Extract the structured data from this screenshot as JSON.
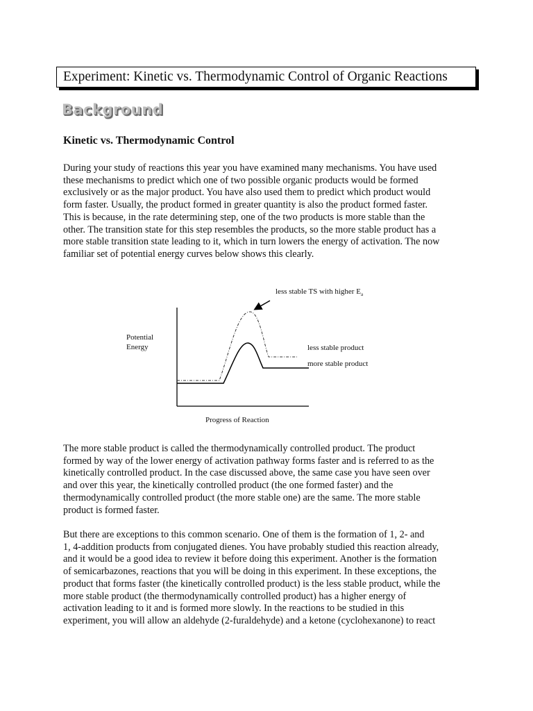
{
  "title": "Experiment:  Kinetic vs. Thermodynamic Control of Organic Reactions",
  "section_banner": "Background",
  "heading": "Kinetic vs. Thermodynamic Control",
  "paragraphs": [
    [
      "During your study of reactions this year you have examined many mechanisms.  You have used",
      "these mechanisms to predict which one of two possible organic products would be formed",
      "exclusively or as the major product.  You have also used them to predict which product would",
      "form faster.  Usually, the product formed in greater quantity is also the product formed faster.",
      "This is because, in the rate determining step, one of the two products is more stable than the",
      "other.  The transition state for this step resembles the products, so the more stable product has a",
      "more stable transition state leading to it, which in turn lowers the energy of activation.  The now",
      "familiar set of potential energy curves below shows this clearly."
    ],
    [
      "The more stable product is called the thermodynamically controlled product.  The product",
      "formed by way of the lower energy of activation pathway forms faster and is referred to as the",
      "kinetically controlled product.  In the case discussed above, the same case you have seen over",
      "and over this year, the kinetically controlled product (the one formed faster) and the",
      "thermodynamically controlled product (the more stable one) are the same.  The more stable",
      "product is formed faster."
    ],
    [
      "But there are exceptions to this common scenario.  One of them is the formation of 1, 2- and",
      "1, 4-addition products from conjugated dienes.  You have probably studied this reaction already,",
      "and it would be a good idea to review it before doing this experiment.  Another is the formation",
      "of semicarbazones, reactions that you will be doing in this experiment.  In these exceptions, the",
      "product that forms faster (the kinetically controlled product) is the less stable product, while the",
      "more stable product (the thermodynamically controlled product) has a higher energy of",
      "activation leading to it and is formed more slowly.  In the reactions to be studied in this",
      "experiment, you will allow an aldehyde (2-furaldehyde) and a ketone (cyclohexanone) to react"
    ]
  ],
  "diagram": {
    "ts_label": "less stable TS with higher E",
    "ts_label_sub": "a",
    "y_label_1": "Potential",
    "y_label_2": "Energy",
    "x_label": "Progress of Reaction",
    "less_stable_label": "less stable product",
    "more_stable_label": "more stable product"
  }
}
